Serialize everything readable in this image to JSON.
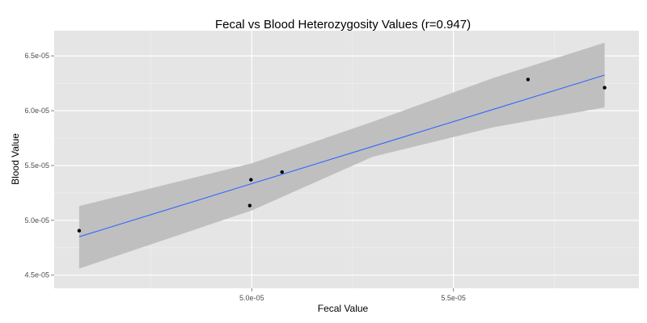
{
  "chart_data": {
    "type": "scatter",
    "title": "Fecal vs Blood Heterozygosity Values (r=0.947)",
    "xlabel": "Fecal Value",
    "ylabel": "Blood Value",
    "xlim": [
      4.51e-05,
      5.96e-05
    ],
    "ylim": [
      4.38e-05,
      6.73e-05
    ],
    "x_ticks": [
      {
        "value": 5e-05,
        "label": "5.0e-05"
      },
      {
        "value": 5.5e-05,
        "label": "5.5e-05"
      }
    ],
    "y_ticks": [
      {
        "value": 4.5e-05,
        "label": "4.5e-05"
      },
      {
        "value": 5e-05,
        "label": "5.0e-05"
      },
      {
        "value": 5.5e-05,
        "label": "5.5e-05"
      },
      {
        "value": 6e-05,
        "label": "6.0e-05"
      },
      {
        "value": 6.5e-05,
        "label": "6.5e-05"
      }
    ],
    "points": [
      {
        "x": 4.572e-05,
        "y": 4.905e-05
      },
      {
        "x": 4.995e-05,
        "y": 5.135e-05
      },
      {
        "x": 4.998e-05,
        "y": 5.37e-05
      },
      {
        "x": 5.075e-05,
        "y": 5.44e-05
      },
      {
        "x": 5.685e-05,
        "y": 6.285e-05
      },
      {
        "x": 5.875e-05,
        "y": 6.21e-05
      }
    ],
    "fit": {
      "x": [
        4.572e-05,
        5.875e-05
      ],
      "y": [
        4.85e-05,
        6.325e-05
      ]
    },
    "confidence_band": [
      {
        "x": 4.572e-05,
        "lower": 4.56e-05,
        "upper": 5.13e-05
      },
      {
        "x": 5e-05,
        "lower": 5.09e-05,
        "upper": 5.52e-05
      },
      {
        "x": 5.3e-05,
        "lower": 5.58e-05,
        "upper": 5.9e-05
      },
      {
        "x": 5.6e-05,
        "lower": 5.85e-05,
        "upper": 6.3e-05
      },
      {
        "x": 5.875e-05,
        "lower": 6.03e-05,
        "upper": 6.62e-05
      }
    ],
    "grid": true,
    "colors": {
      "panel": "#e5e5e5",
      "grid_major": "#ffffff",
      "grid_minor": "#f2f2f2",
      "band": "#bfbfbf",
      "fit_line": "#3366ff",
      "point": "#000000"
    }
  }
}
